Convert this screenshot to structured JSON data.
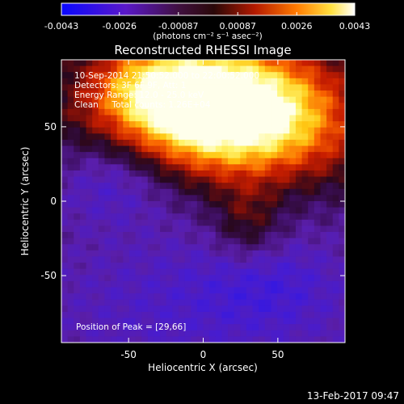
{
  "chart_data": {
    "type": "heatmap",
    "title": "Reconstructed RHESSI Image",
    "xlabel": "Heliocentric X (arcsec)",
    "ylabel": "Heliocentric Y (arcsec)",
    "xlim": [
      -95,
      95
    ],
    "ylim": [
      -95,
      95
    ],
    "x_ticks": [
      "-50",
      "0",
      "50"
    ],
    "x_tick_values": [
      -50,
      0,
      50
    ],
    "y_ticks": [
      "-50",
      "0",
      "50"
    ],
    "y_tick_values": [
      -50,
      0,
      50
    ],
    "colorbar": {
      "range": [
        -0.0043,
        0.0043
      ],
      "tick_labels": [
        "-0.0043",
        "-0.0026",
        "-0.00087",
        "0.00087",
        "0.0026",
        "0.0043"
      ],
      "tick_values": [
        -0.0043,
        -0.0026,
        -0.00087,
        0.00087,
        0.0026,
        0.0043
      ],
      "units": "(photons cm⁻² s⁻¹ asec⁻²)"
    },
    "colors": {
      "low": "#1a10ff",
      "mid_low": "#4a1a9a",
      "mid": "#2a0a18",
      "mid_high": "#c81e00",
      "high": "#ffff60",
      "top": "#ffffff"
    },
    "annotations": [
      "10-Sep-2014 21:50:52.000 to 22:00:52.000",
      "Detectors: 3F 6F 9F, Att: 1",
      "Energy Range: 12.0 - 25.0 keV",
      "Clean     Total counts: 1.26E+04"
    ],
    "peak_label": "Position of Peak = [29,66]",
    "peak": [
      29,
      66
    ]
  },
  "footer": {
    "timestamp": "13-Feb-2017 09:47"
  }
}
